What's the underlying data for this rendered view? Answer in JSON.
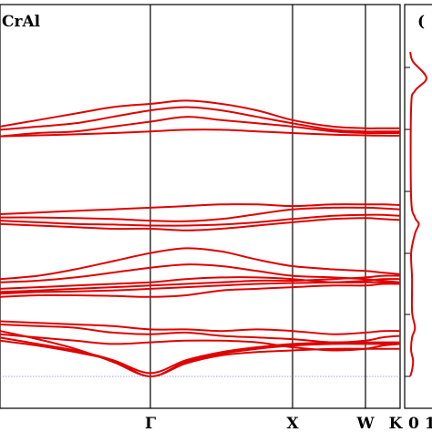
{
  "chart_data": [
    {
      "type": "line",
      "title": "CrAl",
      "xlabel": "",
      "ylabel": "",
      "x_ticks": [
        "Γ",
        "X",
        "W",
        "K"
      ],
      "zero_line": {
        "value": 0,
        "color": "#8080ff",
        "style": "dotted"
      },
      "series_color": "#e00000",
      "grid": false,
      "legend": "none",
      "ylim": [
        0,
        100
      ],
      "series": [
        {
          "x": [
            0,
            0.5,
            1,
            1.5,
            2,
            2.5,
            3,
            3.5,
            4,
            4.5,
            4.9,
            5.3,
            5.72
          ],
          "values": [
            77,
            79,
            81,
            83,
            84,
            85,
            84,
            82,
            79,
            77,
            76.5,
            76.5,
            76.5
          ]
        },
        {
          "x": [
            0,
            0.5,
            1,
            1.5,
            2,
            2.5,
            3,
            3.5,
            4,
            4.5,
            4.9,
            5.3,
            5.72
          ],
          "values": [
            76,
            77,
            78,
            80,
            82,
            83,
            82,
            80,
            78,
            76,
            75.5,
            75.5,
            75.5
          ]
        },
        {
          "x": [
            0,
            0.5,
            1,
            1.5,
            2,
            2.5,
            3,
            3.5,
            4,
            4.5,
            4.9,
            5.3,
            5.72
          ],
          "values": [
            74,
            75,
            75.5,
            77,
            78.5,
            80,
            79,
            78,
            77,
            75.5,
            75,
            75,
            75
          ]
        },
        {
          "x": [
            0,
            0.5,
            1,
            1.5,
            2,
            2.5,
            3,
            3.5,
            4,
            4.5,
            4.9,
            5.3,
            5.72
          ],
          "values": [
            74,
            74.3,
            74.6,
            75,
            75.5,
            76,
            76,
            75.5,
            75,
            74.5,
            74.3,
            74.2,
            74.2
          ]
        },
        {
          "x": [
            0,
            0.5,
            1,
            1.5,
            2,
            2.5,
            3,
            3.5,
            4,
            4.5,
            4.9,
            5.3,
            5.72
          ],
          "values": [
            50,
            50.5,
            51,
            51.5,
            52,
            52.5,
            53,
            53,
            52.5,
            53,
            53,
            53,
            52.8
          ]
        },
        {
          "x": [
            0,
            0.5,
            1,
            1.5,
            2,
            2.5,
            3,
            3.5,
            4,
            4.5,
            4.9,
            5.3,
            5.72
          ],
          "values": [
            49,
            49,
            48.8,
            48.5,
            48,
            47.8,
            48.5,
            50,
            51.5,
            52,
            52,
            51.8,
            51.5
          ]
        },
        {
          "x": [
            0,
            0.5,
            1,
            1.5,
            2,
            2.5,
            3,
            3.5,
            4,
            4.5,
            4.9,
            5.3,
            5.72
          ],
          "values": [
            48,
            47.5,
            47,
            46.8,
            46.5,
            46.5,
            46.8,
            47.5,
            48.5,
            49.5,
            49.8,
            49.8,
            49.5
          ]
        },
        {
          "x": [
            0,
            0.5,
            1,
            1.5,
            2,
            2.5,
            3,
            3.5,
            4,
            4.5,
            4.9,
            5.3,
            5.72
          ],
          "values": [
            47,
            46.5,
            46,
            45.5,
            45.5,
            45,
            45.5,
            46.5,
            47.5,
            48.5,
            48.8,
            48.5,
            48.2
          ]
        },
        {
          "x": [
            0,
            0.5,
            1,
            1.5,
            2,
            2.5,
            3,
            3.5,
            4,
            4.5,
            4.9,
            5.3,
            5.72
          ],
          "values": [
            30,
            31,
            33,
            35.5,
            38,
            39.5,
            38.5,
            36,
            34,
            33,
            32.5,
            32,
            31.5
          ]
        },
        {
          "x": [
            0,
            0.5,
            1,
            1.5,
            2,
            2.5,
            3,
            3.5,
            4,
            4.5,
            4.9,
            5.3,
            5.72
          ],
          "values": [
            29,
            29.5,
            30.5,
            32,
            33.5,
            34.5,
            34,
            32.5,
            31,
            30.5,
            30,
            29.5,
            29
          ]
        },
        {
          "x": [
            0,
            0.5,
            1,
            1.5,
            2,
            2.5,
            3,
            3.5,
            4,
            4.5,
            4.9,
            5.3,
            5.72
          ],
          "values": [
            27,
            27.5,
            28,
            28.5,
            29,
            30,
            30.5,
            30.5,
            30,
            29,
            29,
            29,
            28.5
          ]
        },
        {
          "x": [
            0,
            0.5,
            1,
            1.5,
            2,
            2.5,
            3,
            3.5,
            4,
            4.5,
            4.9,
            5.3,
            5.72
          ],
          "values": [
            26,
            26.5,
            27,
            27.5,
            28,
            28.5,
            29,
            29.5,
            29.5,
            30,
            30.5,
            31,
            31
          ]
        },
        {
          "x": [
            0,
            0.5,
            1,
            1.5,
            2,
            2.5,
            3,
            3.5,
            4,
            4.5,
            4.9,
            5.3,
            5.72
          ],
          "values": [
            25.5,
            26,
            26.2,
            26.5,
            27,
            27.5,
            28,
            28.5,
            28.8,
            29,
            29.5,
            30,
            30
          ]
        },
        {
          "x": [
            0,
            0.5,
            1,
            1.5,
            2,
            2.5,
            3,
            3.5,
            4,
            4.5,
            4.9,
            5.3,
            5.72
          ],
          "values": [
            24.5,
            25,
            25,
            24.8,
            24.5,
            25,
            26.5,
            27,
            27.5,
            28,
            28,
            28.5,
            28.5
          ]
        },
        {
          "x": [
            0,
            0.5,
            1,
            1.5,
            2,
            2.5,
            3,
            3.5,
            4,
            4.5,
            4.9,
            5.3,
            5.72
          ],
          "values": [
            17,
            16.5,
            16,
            15.5,
            14.5,
            14.5,
            14,
            14.5,
            14,
            13,
            13.5,
            14,
            14
          ]
        },
        {
          "x": [
            0,
            0.5,
            1,
            1.5,
            2,
            2.5,
            3,
            3.5,
            4,
            4.5,
            4.9,
            5.3,
            5.72
          ],
          "values": [
            16,
            15.5,
            15,
            13.5,
            13,
            13.5,
            12.5,
            12,
            11.5,
            10.5,
            11,
            12,
            12.5
          ]
        },
        {
          "x": [
            0,
            0.5,
            1,
            1.5,
            2,
            2.5,
            3,
            3.5,
            4,
            4.5,
            4.9,
            5.3,
            5.72
          ],
          "values": [
            13,
            12,
            11,
            10,
            10.5,
            11,
            11,
            10.5,
            9,
            8,
            8.5,
            9.5,
            10
          ]
        },
        {
          "x": [
            0,
            0.5,
            1,
            1.5,
            2,
            2.5,
            3,
            3.5,
            4,
            4.5,
            4.9,
            5.3,
            5.72
          ],
          "values": [
            11,
            9.5,
            7.5,
            5,
            1,
            5,
            7.5,
            9,
            10,
            10.5,
            10.5,
            10.5,
            10.5
          ]
        },
        {
          "x": [
            0,
            0.5,
            1,
            1.5,
            2,
            2.5,
            3,
            3.5,
            4,
            4.5,
            4.9,
            5.3,
            5.72
          ],
          "values": [
            12,
            10,
            8,
            5,
            0,
            4.5,
            7,
            8.5,
            9.5,
            10,
            10,
            10,
            10
          ]
        },
        {
          "x": [
            0,
            0.5,
            1,
            1.5,
            2,
            2.5,
            3,
            3.5,
            4,
            4.5,
            4.9,
            5.3,
            5.72
          ],
          "values": [
            14,
            11.5,
            8.5,
            4.5,
            0,
            4,
            6.5,
            7.5,
            8,
            8.5,
            8.5,
            8.5,
            8.5
          ]
        }
      ]
    },
    {
      "type": "line",
      "title": "(",
      "x_ticks": [
        "0",
        "1"
      ],
      "series_color": "#e00000",
      "series": [
        {
          "x": [
            0.05,
            0.2,
            0.9,
            0.3,
            0.1,
            0.1,
            0.3,
            0.5,
            0.3,
            0.1,
            0.15,
            0.15,
            0.3,
            0.15,
            0.1,
            0.2,
            0.15,
            0.05
          ],
          "values": [
            100,
            97,
            92,
            88,
            83,
            55,
            49,
            47,
            44,
            38,
            30,
            20,
            15,
            12,
            8,
            5,
            2,
            0
          ]
        }
      ]
    }
  ]
}
